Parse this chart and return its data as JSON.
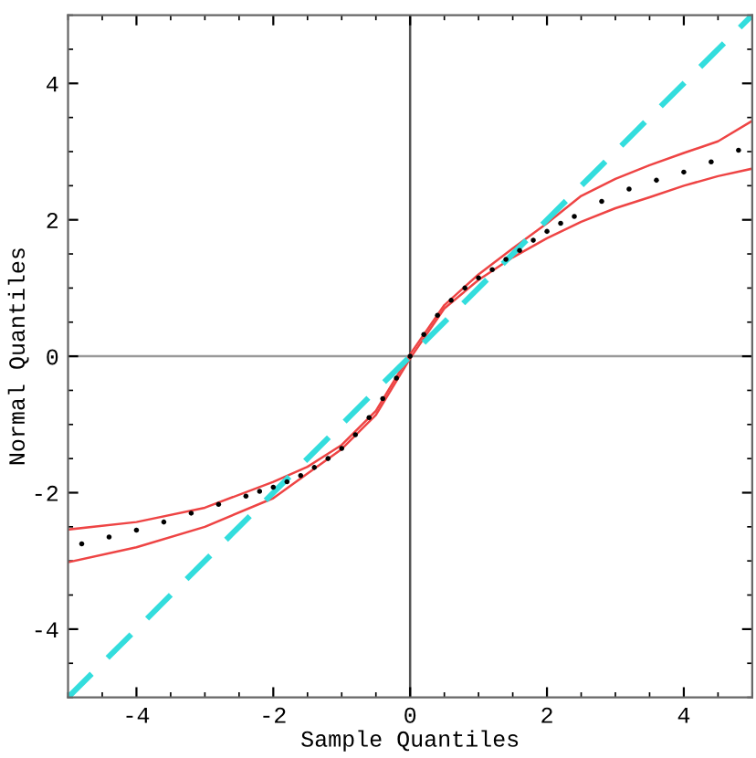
{
  "chart_data": {
    "type": "scatter",
    "xlabel": "Sample Quantiles",
    "ylabel": "Normal Quantiles",
    "xlim": [
      -5,
      5
    ],
    "ylim": [
      -5,
      5
    ],
    "xticks": [
      -4,
      -2,
      0,
      2,
      4
    ],
    "yticks": [
      -4,
      -2,
      0,
      2,
      4
    ],
    "grid": false,
    "legend": false,
    "ref_lines": [
      {
        "axis": "x",
        "value": 0,
        "color": "#555555"
      },
      {
        "axis": "y",
        "value": 0,
        "color": "#999999"
      }
    ],
    "series": [
      {
        "type": "line",
        "color": "#ee4444",
        "line_style": "solid",
        "marker": "none",
        "x": [
          -5,
          -4,
          -3,
          -2,
          -1.5,
          -1,
          -0.5,
          0,
          0.5,
          1,
          1.5,
          2,
          2.5,
          3,
          3.5,
          4,
          4.5,
          5
        ],
        "values": [
          -2.54,
          -2.43,
          -2.22,
          -1.84,
          -1.62,
          -1.3,
          -0.8,
          0.03,
          0.75,
          1.2,
          1.58,
          1.95,
          2.35,
          2.6,
          2.8,
          2.98,
          3.15,
          3.45
        ]
      },
      {
        "type": "line",
        "color": "#ee4444",
        "line_style": "solid",
        "marker": "none",
        "x": [
          -5,
          -4,
          -3,
          -2,
          -1.5,
          -1,
          -0.5,
          0,
          0.5,
          1,
          1.5,
          2,
          2.5,
          3,
          3.5,
          4,
          4.5,
          5
        ],
        "values": [
          -3.02,
          -2.8,
          -2.5,
          -2.08,
          -1.72,
          -1.36,
          -0.86,
          -0.03,
          0.7,
          1.12,
          1.45,
          1.73,
          1.97,
          2.17,
          2.33,
          2.5,
          2.64,
          2.75
        ]
      },
      {
        "type": "line",
        "color": "#33dddd",
        "line_style": "dashed",
        "marker": "none",
        "x": [
          -5,
          5
        ],
        "values": [
          -5,
          5
        ]
      },
      {
        "color": "#000000",
        "marker": "circle",
        "x": [
          -4.8,
          -4.4,
          -4.0,
          -3.6,
          -3.2,
          -2.8,
          -2.4,
          -2.2,
          -2.0,
          -1.8,
          -1.6,
          -1.4,
          -1.2,
          -1.0,
          -0.8,
          -0.6,
          -0.4,
          -0.2,
          0,
          0.2,
          0.4,
          0.6,
          0.8,
          1.0,
          1.2,
          1.4,
          1.6,
          1.8,
          2.0,
          2.2,
          2.4,
          2.8,
          3.2,
          3.6,
          4.0,
          4.4,
          4.8
        ],
        "values": [
          -2.75,
          -2.65,
          -2.55,
          -2.43,
          -2.3,
          -2.17,
          -2.05,
          -1.98,
          -1.92,
          -1.84,
          -1.75,
          -1.63,
          -1.5,
          -1.35,
          -1.15,
          -0.9,
          -0.62,
          -0.32,
          0,
          0.32,
          0.6,
          0.82,
          1.0,
          1.15,
          1.27,
          1.42,
          1.55,
          1.7,
          1.83,
          1.95,
          2.05,
          2.27,
          2.45,
          2.58,
          2.7,
          2.85,
          3.02
        ]
      }
    ]
  }
}
